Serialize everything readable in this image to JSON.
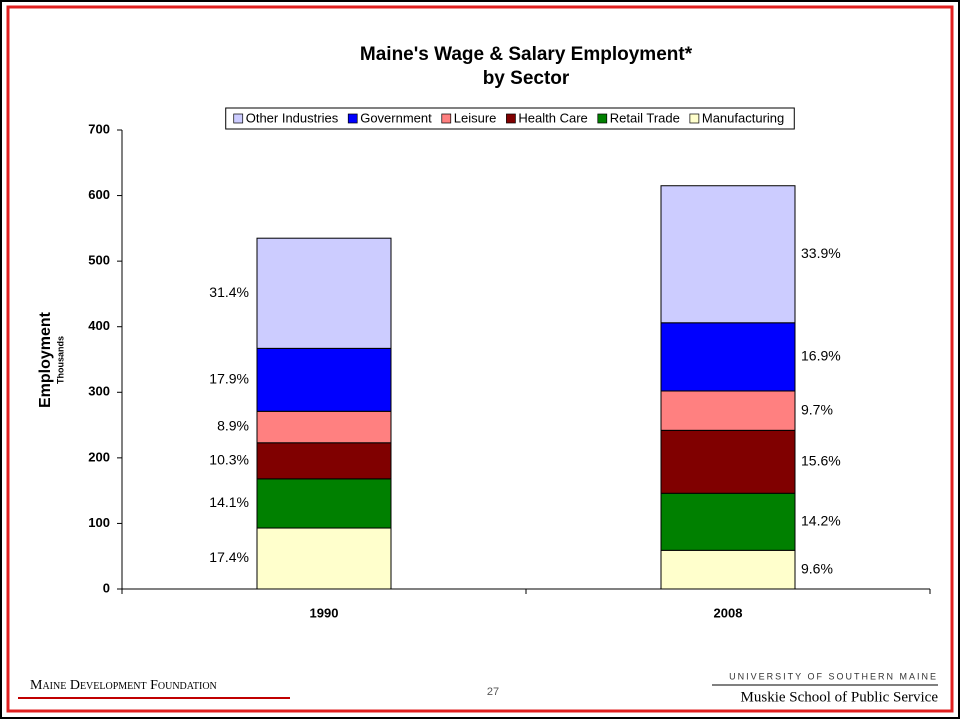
{
  "chart_data": {
    "type": "stacked_bar",
    "title": [
      "Maine's Wage & Salary Employment*",
      "by Sector"
    ],
    "ylabel": "Employment",
    "ylabel_sub": "Thousands",
    "categories": [
      "1990",
      "2008"
    ],
    "series": [
      {
        "name": "Other Industries",
        "color": "#ccccff",
        "values": [
          168,
          209
        ],
        "labels": [
          "31.4%",
          "33.9%"
        ]
      },
      {
        "name": "Government",
        "color": "#0000ff",
        "values": [
          96,
          104
        ],
        "labels": [
          "17.9%",
          "16.9%"
        ]
      },
      {
        "name": "Leisure",
        "color": "#ff8080",
        "values": [
          48,
          60
        ],
        "labels": [
          "8.9%",
          "9.7%"
        ]
      },
      {
        "name": "Health Care",
        "color": "#800000",
        "values": [
          55,
          96
        ],
        "labels": [
          "10.3%",
          "15.6%"
        ]
      },
      {
        "name": "Retail Trade",
        "color": "#008000",
        "values": [
          75,
          87
        ],
        "labels": [
          "14.1%",
          "14.2%"
        ]
      },
      {
        "name": "Manufacturing",
        "color": "#ffffcc",
        "values": [
          93,
          59
        ],
        "labels": [
          "17.4%",
          "9.6%"
        ]
      }
    ],
    "ylim": [
      0,
      700
    ],
    "yticks": [
      0,
      100,
      200,
      300,
      400,
      500,
      600,
      700
    ],
    "legend": "top"
  },
  "footer": {
    "left": "Maine Development Foundation",
    "page": "27",
    "right_top": "UNIVERSITY OF SOUTHERN MAINE",
    "right_bottom": "Muskie School of Public Service"
  }
}
